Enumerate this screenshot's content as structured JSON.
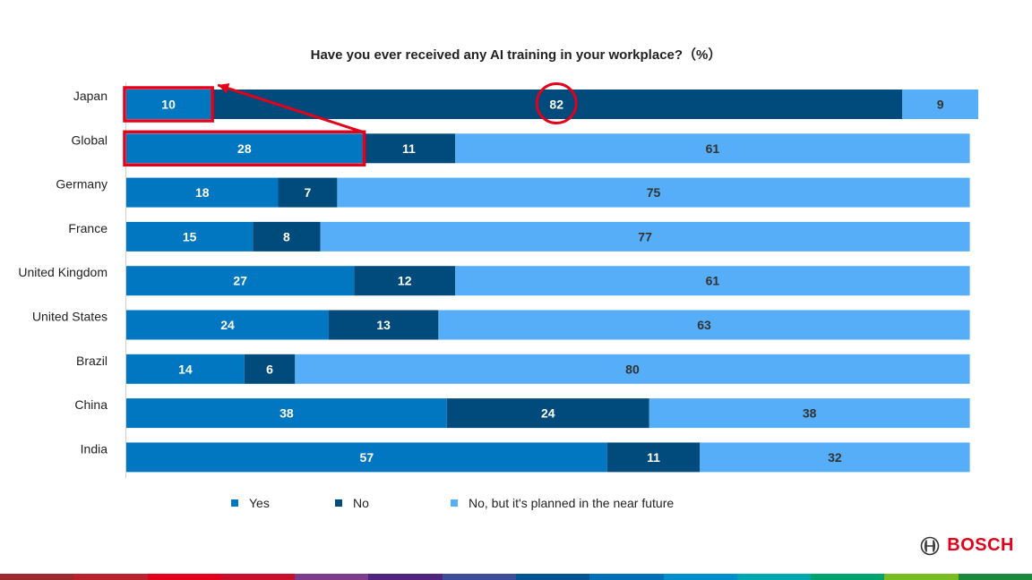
{
  "chart_data": {
    "type": "bar",
    "orientation": "horizontal",
    "stacked": true,
    "title": "Have you ever received any AI training in your workplace?（%）",
    "categories": [
      "Japan",
      "Global",
      "Germany",
      "France",
      "United Kingdom",
      "United States",
      "Brazil",
      "China",
      "India"
    ],
    "series": [
      {
        "name": "Yes",
        "color": "#0077c0",
        "values": [
          10,
          28,
          18,
          15,
          27,
          24,
          14,
          38,
          57
        ]
      },
      {
        "name": "No",
        "color": "#004a7c",
        "values": [
          82,
          11,
          7,
          8,
          12,
          13,
          6,
          24,
          11
        ]
      },
      {
        "name": "No, but it's planned in the near future",
        "color": "#56adf8",
        "values": [
          9,
          61,
          75,
          77,
          61,
          63,
          80,
          38,
          32
        ]
      }
    ],
    "xlim": [
      0,
      101
    ],
    "grid": false,
    "legend": "bottom",
    "annotations": [
      {
        "type": "box",
        "category": "Japan",
        "series": "Yes",
        "color": "#e2001a"
      },
      {
        "type": "box",
        "category": "Global",
        "series": "Yes",
        "color": "#e2001a"
      },
      {
        "type": "circle",
        "category": "Japan",
        "series": "No",
        "color": "#e2001a"
      },
      {
        "type": "arrow",
        "from": "Global",
        "to": "Japan",
        "color": "#e2001a"
      }
    ]
  },
  "brand": {
    "name": "BOSCH",
    "color": "#e2001a",
    "icon": "bosch-armature-icon"
  },
  "footer_band_colors": [
    "#9e2a2f",
    "#b8232f",
    "#e2001a",
    "#c8102e",
    "#7d3c8c",
    "#50237f",
    "#3d4d9c",
    "#005691",
    "#0071b9",
    "#008ecf",
    "#00a8b0",
    "#00a36e",
    "#78be20",
    "#1b8a3e"
  ]
}
